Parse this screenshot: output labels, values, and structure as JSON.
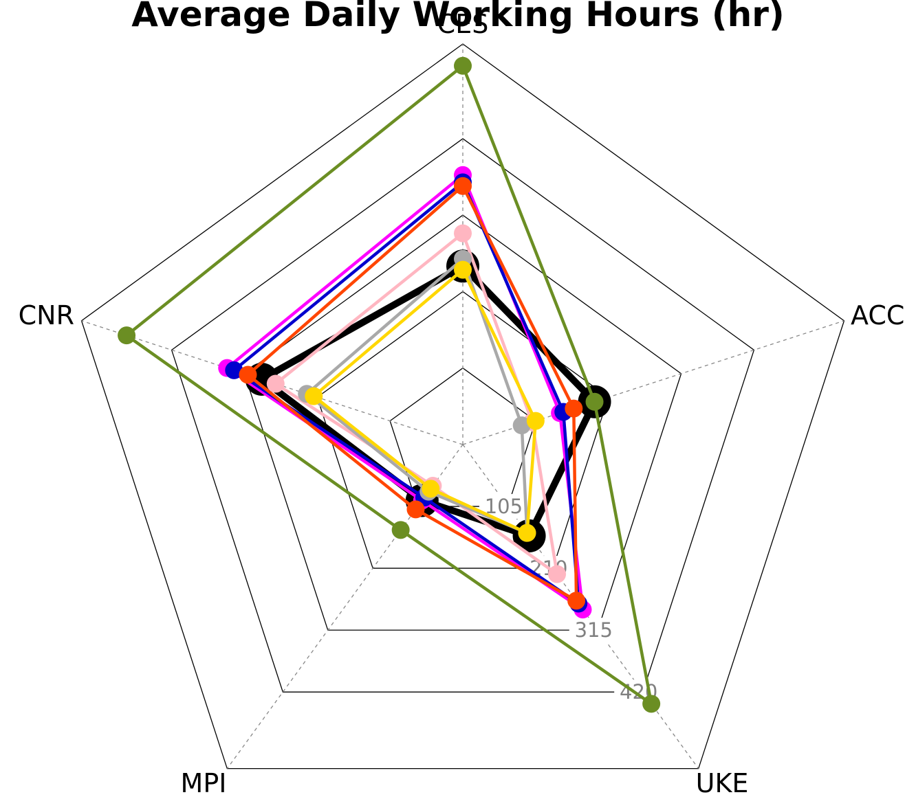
{
  "chart_data": {
    "type": "radar",
    "title": "Average Daily Working Hours (hr)",
    "axes": [
      "CES",
      "ACC",
      "UKE",
      "MPI",
      "CNR"
    ],
    "radial_ticks": [
      105,
      210,
      315,
      420
    ],
    "radial_range": [
      0,
      420
    ],
    "grid": true,
    "series": [
      {
        "color": "#000000",
        "values": [
          245,
          190,
          155,
          95,
          290
        ]
      },
      {
        "color": "#ff00ff",
        "values": [
          370,
          140,
          280,
          95,
          340
        ]
      },
      {
        "color": "#0000cd",
        "values": [
          360,
          145,
          270,
          90,
          330
        ]
      },
      {
        "color": "#ff4500",
        "values": [
          355,
          160,
          265,
          110,
          310
        ]
      },
      {
        "color": "#ffb6c1",
        "values": [
          290,
          100,
          220,
          70,
          270
        ]
      },
      {
        "color": "#a9a9a9",
        "values": [
          255,
          85,
          150,
          80,
          225
        ]
      },
      {
        "color": "#ffd700",
        "values": [
          240,
          105,
          150,
          75,
          215
        ]
      },
      {
        "color": "#6b8e23",
        "values": [
          520,
          190,
          440,
          145,
          485
        ]
      }
    ]
  }
}
